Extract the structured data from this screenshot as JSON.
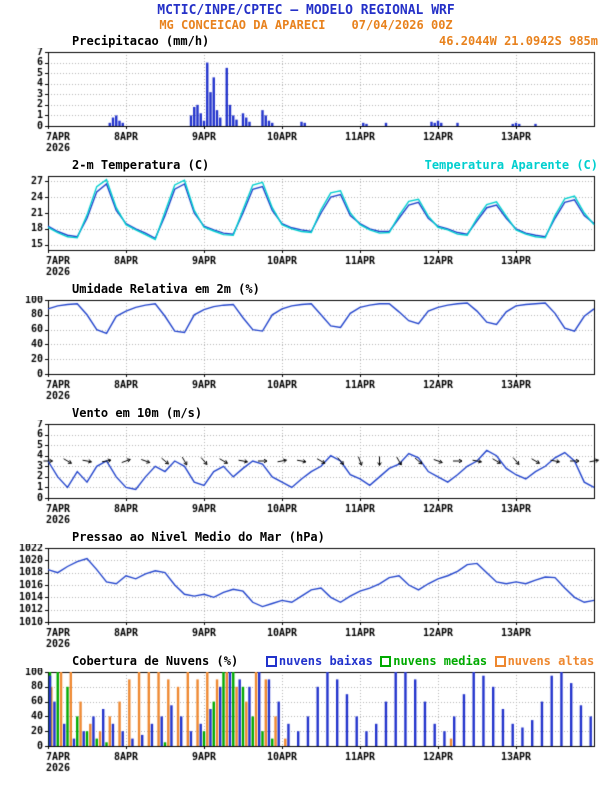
{
  "header": {
    "title": "MCTIC/INPE/CPTEC — MODELO REGIONAL WRF",
    "station": "MG CONCEICAO DA APARECI",
    "run": "07/04/2026 00Z",
    "location": "46.2044W 21.0942S 985m"
  },
  "colors": {
    "header_blue": "#2531c8",
    "orange": "#e8821e",
    "line_blue": "#2244cc",
    "cyan": "#00cfcf",
    "green": "#00aa00",
    "cloud_orange": "#ee8830",
    "axis_black": "#000000"
  },
  "xaxis": {
    "min": 0,
    "max": 168,
    "tick_interval": 24,
    "tick_labels": [
      "7APR",
      "8APR",
      "9APR",
      "10APR",
      "11APR",
      "12APR",
      "13APR"
    ],
    "year": "2026"
  },
  "chart_data": [
    {
      "id": "precipitation",
      "type": "bar",
      "title": "Precipitacao (mm/h)",
      "ylabel": "mm/h",
      "ylim": [
        0,
        7
      ],
      "yticks": [
        0,
        1,
        2,
        3,
        4,
        5,
        6,
        7
      ],
      "color": "#2233cc",
      "events": [
        [
          19,
          0.3
        ],
        [
          20,
          0.8
        ],
        [
          21,
          1.0
        ],
        [
          22,
          0.5
        ],
        [
          23,
          0.3
        ],
        [
          44,
          1.0
        ],
        [
          45,
          1.8
        ],
        [
          46,
          2.0
        ],
        [
          47,
          1.2
        ],
        [
          48,
          0.5
        ],
        [
          49,
          6.0
        ],
        [
          50,
          3.2
        ],
        [
          51,
          4.6
        ],
        [
          52,
          1.5
        ],
        [
          53,
          0.8
        ],
        [
          55,
          5.5
        ],
        [
          56,
          2.0
        ],
        [
          57,
          1.0
        ],
        [
          58,
          0.6
        ],
        [
          60,
          1.2
        ],
        [
          61,
          0.8
        ],
        [
          62,
          0.4
        ],
        [
          66,
          1.5
        ],
        [
          67,
          1.0
        ],
        [
          68,
          0.5
        ],
        [
          69,
          0.3
        ],
        [
          78,
          0.4
        ],
        [
          79,
          0.3
        ],
        [
          97,
          0.3
        ],
        [
          98,
          0.2
        ],
        [
          104,
          0.3
        ],
        [
          118,
          0.4
        ],
        [
          119,
          0.3
        ],
        [
          120,
          0.5
        ],
        [
          121,
          0.3
        ],
        [
          126,
          0.3
        ],
        [
          143,
          0.2
        ],
        [
          144,
          0.3
        ],
        [
          145,
          0.2
        ],
        [
          150,
          0.2
        ]
      ]
    },
    {
      "id": "temperature",
      "type": "line",
      "title": "2-m Temperatura (C)",
      "right_label": "Temperatura Aparente (C)",
      "ylim": [
        14,
        28
      ],
      "yticks": [
        15,
        18,
        21,
        24,
        27
      ],
      "x_step": 3,
      "series": [
        {
          "name": "2-m Temperatura (C)",
          "color": "#2244cc",
          "values": [
            18.5,
            17.5,
            16.8,
            16.5,
            20.0,
            25.0,
            26.5,
            21.5,
            19.0,
            18.0,
            17.2,
            16.2,
            20.5,
            25.5,
            26.5,
            21.0,
            18.5,
            17.8,
            17.2,
            17.0,
            21.0,
            25.5,
            26.0,
            21.5,
            19.0,
            18.2,
            17.8,
            17.5,
            21.0,
            24.0,
            24.5,
            20.5,
            19.0,
            18.0,
            17.5,
            17.5,
            20.0,
            22.5,
            23.0,
            20.0,
            18.5,
            18.0,
            17.3,
            17.0,
            19.5,
            22.0,
            22.5,
            20.0,
            18.0,
            17.2,
            16.8,
            16.5,
            20.0,
            23.0,
            23.5,
            20.5,
            19.0
          ]
        },
        {
          "name": "Temperatura Aparente (C)",
          "color": "#00cfcf",
          "values": [
            18.3,
            17.3,
            16.5,
            16.3,
            20.6,
            26.0,
            27.3,
            22.0,
            18.8,
            17.8,
            16.9,
            16.0,
            21.2,
            26.3,
            27.2,
            21.5,
            18.3,
            17.6,
            16.9,
            16.8,
            21.6,
            26.3,
            26.8,
            22.0,
            18.8,
            18.0,
            17.5,
            17.3,
            21.6,
            24.8,
            25.2,
            21.0,
            18.8,
            17.8,
            17.2,
            17.3,
            20.5,
            23.2,
            23.6,
            20.4,
            18.3,
            17.8,
            17.0,
            16.8,
            20.0,
            22.6,
            23.1,
            20.4,
            17.8,
            17.0,
            16.5,
            16.3,
            20.5,
            23.7,
            24.2,
            21.0,
            18.8
          ]
        }
      ]
    },
    {
      "id": "humidity",
      "type": "line",
      "title": "Umidade Relativa em 2m (%)",
      "ylim": [
        0,
        100
      ],
      "yticks": [
        0,
        20,
        40,
        60,
        80,
        100
      ],
      "x_step": 3,
      "series": [
        {
          "name": "Umidade Relativa",
          "color": "#2244cc",
          "values": [
            88,
            92,
            94,
            95,
            80,
            60,
            55,
            78,
            85,
            90,
            93,
            95,
            78,
            58,
            56,
            80,
            87,
            91,
            93,
            94,
            76,
            60,
            58,
            80,
            88,
            92,
            94,
            95,
            80,
            65,
            63,
            82,
            90,
            93,
            95,
            95,
            84,
            72,
            68,
            85,
            90,
            93,
            95,
            96,
            85,
            70,
            67,
            84,
            92,
            94,
            95,
            96,
            82,
            62,
            58,
            78,
            88
          ]
        }
      ]
    },
    {
      "id": "wind",
      "type": "wind",
      "title": "Vento em 10m (m/s)",
      "ylim": [
        0,
        7
      ],
      "yticks": [
        0,
        1,
        2,
        3,
        4,
        5,
        6,
        7
      ],
      "x_step": 3,
      "arrow_level": 3.5,
      "arrow_step_hours": 6,
      "arrow_dirs": [
        90,
        120,
        100,
        80,
        70,
        110,
        130,
        150,
        140,
        120,
        100,
        90,
        80,
        100,
        120,
        140,
        160,
        180,
        150,
        130,
        110,
        90,
        100,
        120,
        140,
        120,
        100,
        90,
        80
      ],
      "series": [
        {
          "name": "Vento em 10m",
          "color": "#2244cc",
          "values": [
            3.5,
            2.0,
            1.0,
            2.5,
            1.5,
            3.0,
            3.5,
            2.0,
            1.0,
            0.8,
            2.0,
            3.0,
            2.5,
            3.5,
            3.0,
            1.5,
            1.2,
            2.5,
            3.0,
            2.0,
            2.8,
            3.5,
            3.2,
            2.0,
            1.5,
            1.0,
            1.8,
            2.5,
            3.0,
            4.0,
            3.5,
            2.2,
            1.8,
            1.2,
            2.0,
            2.8,
            3.2,
            4.2,
            3.8,
            2.5,
            2.0,
            1.5,
            2.2,
            3.0,
            3.5,
            4.5,
            4.0,
            2.8,
            2.2,
            1.8,
            2.5,
            3.0,
            3.8,
            4.3,
            3.5,
            1.5,
            1.0
          ]
        }
      ]
    },
    {
      "id": "pressure",
      "type": "line",
      "title": "Pressao ao Nivel Medio do Mar (hPa)",
      "ylim": [
        1010,
        1022
      ],
      "yticks": [
        1010,
        1012,
        1014,
        1016,
        1018,
        1020,
        1022
      ],
      "x_step": 3,
      "series": [
        {
          "name": "Pressao ao Nivel Medio do Mar",
          "color": "#2244cc",
          "values": [
            1018.5,
            1018.0,
            1019.0,
            1019.8,
            1020.3,
            1018.5,
            1016.5,
            1016.2,
            1017.5,
            1017.0,
            1017.8,
            1018.3,
            1018.0,
            1016.0,
            1014.5,
            1014.2,
            1014.5,
            1014.0,
            1014.8,
            1015.3,
            1015.0,
            1013.2,
            1012.5,
            1013.0,
            1013.5,
            1013.2,
            1014.2,
            1015.2,
            1015.5,
            1014.0,
            1013.2,
            1014.2,
            1015.0,
            1015.5,
            1016.2,
            1017.2,
            1017.5,
            1016.0,
            1015.2,
            1016.2,
            1017.0,
            1017.5,
            1018.2,
            1019.3,
            1019.5,
            1018.0,
            1016.5,
            1016.2,
            1016.5,
            1016.2,
            1016.8,
            1017.3,
            1017.2,
            1015.5,
            1014.0,
            1013.2,
            1013.5
          ]
        }
      ]
    },
    {
      "id": "clouds",
      "type": "bars3",
      "title": "Cobertura de Nuvens (%)",
      "ylim": [
        0,
        100
      ],
      "yticks": [
        0,
        20,
        40,
        60,
        80,
        100
      ],
      "x_step": 3,
      "series": [
        {
          "label": "nuvens baixas",
          "color": "#2233cc",
          "values": [
            95,
            60,
            30,
            10,
            20,
            40,
            50,
            30,
            20,
            10,
            15,
            30,
            40,
            55,
            40,
            20,
            30,
            50,
            80,
            100,
            90,
            80,
            100,
            90,
            60,
            30,
            20,
            40,
            80,
            100,
            90,
            70,
            40,
            20,
            30,
            60,
            100,
            100,
            90,
            60,
            30,
            20,
            40,
            70,
            100,
            95,
            80,
            50,
            30,
            25,
            35,
            60,
            95,
            100,
            85,
            55,
            40
          ]
        },
        {
          "label": "nuvens medias",
          "color": "#00aa00",
          "values": [
            100,
            100,
            80,
            40,
            20,
            10,
            5,
            0,
            0,
            0,
            0,
            0,
            5,
            0,
            0,
            0,
            20,
            60,
            100,
            100,
            80,
            40,
            20,
            10,
            0,
            0,
            0,
            0,
            0,
            0,
            0,
            0,
            0,
            0,
            0,
            0,
            0,
            0,
            0,
            0,
            0,
            0,
            0,
            0,
            0,
            0,
            0,
            0,
            0,
            0,
            0,
            0,
            0,
            0,
            0,
            0,
            0
          ]
        },
        {
          "label": "nuvens altas",
          "color": "#ee8830",
          "values": [
            80,
            100,
            100,
            60,
            30,
            20,
            40,
            60,
            90,
            100,
            100,
            100,
            90,
            80,
            100,
            90,
            100,
            90,
            100,
            80,
            60,
            100,
            90,
            40,
            10,
            0,
            0,
            0,
            0,
            0,
            0,
            0,
            0,
            0,
            0,
            0,
            0,
            0,
            0,
            0,
            0,
            10,
            0,
            0,
            0,
            0,
            0,
            0,
            0,
            0,
            0,
            0,
            0,
            0,
            0,
            0,
            0
          ]
        }
      ]
    }
  ]
}
